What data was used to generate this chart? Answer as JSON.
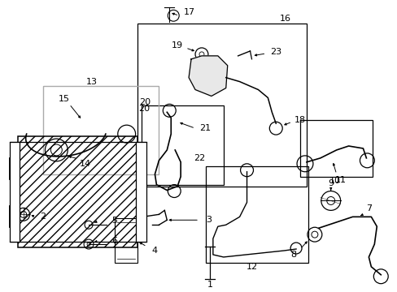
{
  "bg_color": "#ffffff",
  "fig_width": 4.89,
  "fig_height": 3.6,
  "dpi": 100,
  "line_color": "#000000"
}
